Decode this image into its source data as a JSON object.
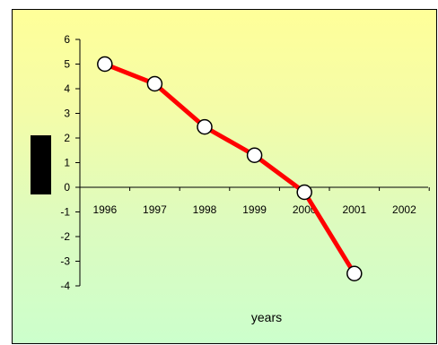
{
  "chart_data": {
    "type": "line",
    "title": "",
    "xlabel": "years",
    "ylabel": "",
    "categories": [
      "1996",
      "1997",
      "1998",
      "1999",
      "2000",
      "2001",
      "2002"
    ],
    "series": [
      {
        "values": [
          5.0,
          4.2,
          2.45,
          1.3,
          -0.2,
          -3.5,
          null
        ]
      }
    ],
    "ylim": [
      -4,
      6
    ],
    "yticks": [
      6,
      5,
      4,
      3,
      2,
      1,
      0,
      -1,
      -2,
      -3,
      -4
    ],
    "grid": false,
    "legend": "none",
    "line_color": "#ff0000",
    "marker_fill": "#ffffff",
    "marker_stroke": "#000000",
    "ylabel_box_color": "#000000"
  }
}
